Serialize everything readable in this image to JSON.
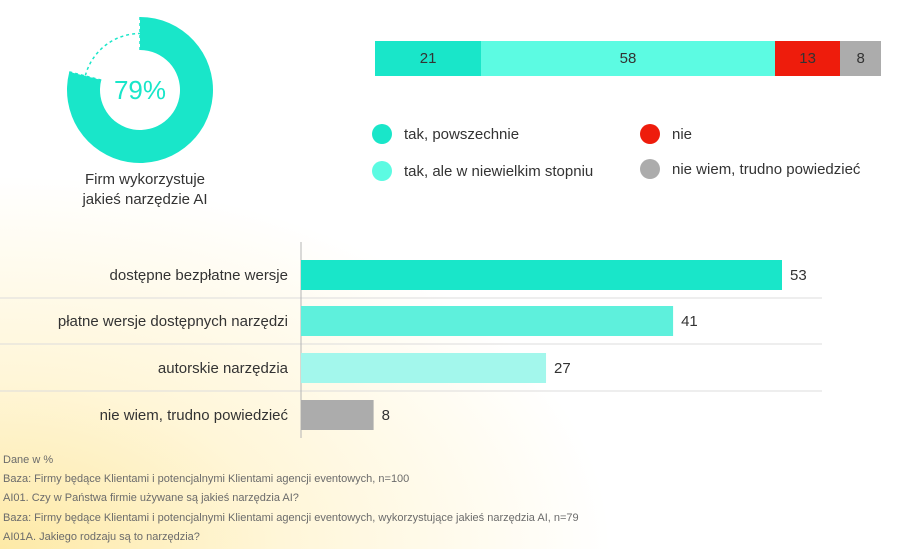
{
  "donut": {
    "value": 79,
    "label": "79%",
    "caption_line1": "Firm wykorzystuje",
    "caption_line2": "jakieś narzędzie AI",
    "color": "#19e6c9"
  },
  "chart_data": [
    {
      "type": "bar",
      "orientation": "stacked-horizontal",
      "series": [
        {
          "name": "tak, powszechnie",
          "values": [
            21
          ],
          "color": "#19e6c9"
        },
        {
          "name": "tak, ale w niewielkim stopniu",
          "values": [
            58
          ],
          "color": "#5cfbe2"
        },
        {
          "name": "nie",
          "values": [
            13
          ],
          "color": "#ee1c0c"
        },
        {
          "name": "nie wiem, trudno powiedzieć",
          "values": [
            8
          ],
          "color": "#acacac"
        }
      ]
    },
    {
      "type": "bar",
      "orientation": "horizontal",
      "categories": [
        "dostępne bezpłatne wersje",
        "płatne wersje dostępnych narzędzi",
        "autorskie narzędzia",
        "nie wiem, trudno powiedzieć"
      ],
      "values": [
        53,
        41,
        27,
        8
      ],
      "colors": [
        "#19e6c9",
        "#5ef0dc",
        "#a3f7ec",
        "#acacac"
      ],
      "xlim": [
        0,
        63
      ]
    }
  ],
  "notes": [
    "Dane w %",
    "Baza: Firmy będące Klientami i potencjalnymi Klientami agencji eventowych, n=100",
    "AI01. Czy w Państwa firmie używane są jakieś narzędzia AI?",
    "Baza: Firmy będące Klientami i potencjalnymi Klientami agencji eventowych, wykorzystujące jakieś narzędzia AI, n=79",
    "AI01A. Jakiego rodzaju są to narzędzia?"
  ]
}
